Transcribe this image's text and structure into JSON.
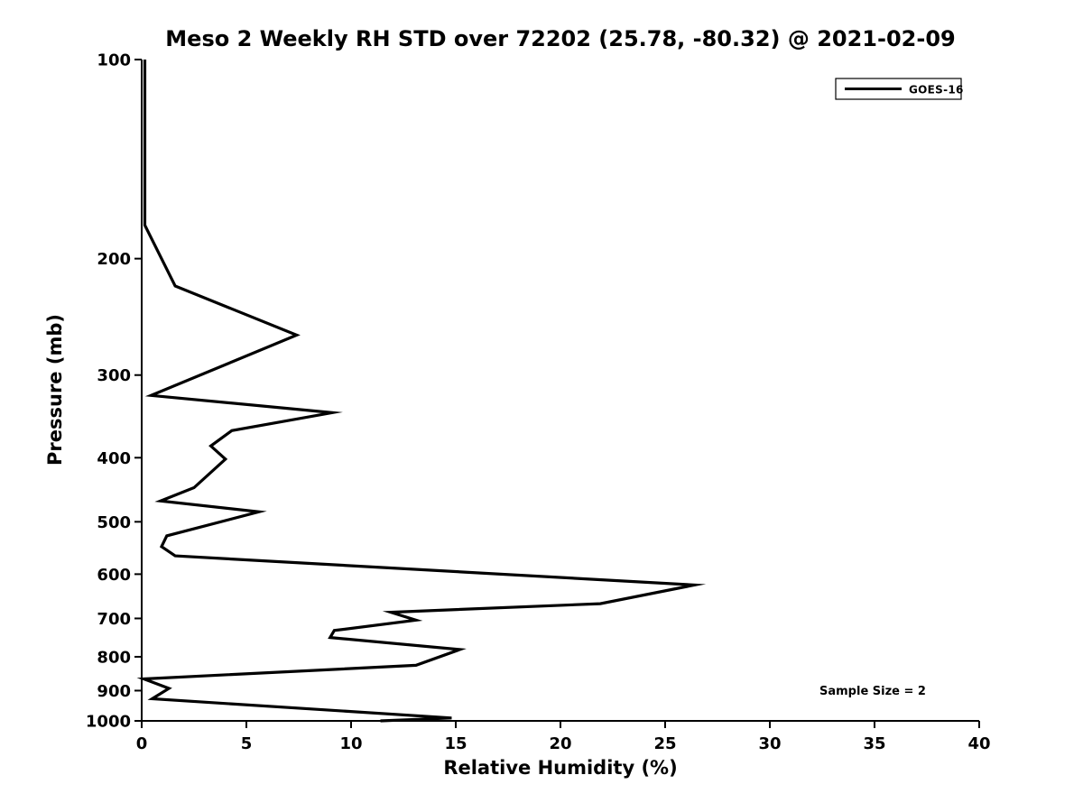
{
  "chart_data": {
    "type": "line",
    "title": "Meso 2 Weekly RH STD over 72202 (25.78, -80.32) @ 2021-02-09",
    "xlabel": "Relative Humidity (%)",
    "ylabel": "Pressure (mb)",
    "xlim": [
      0,
      40
    ],
    "xticks": [
      0,
      5,
      10,
      15,
      20,
      25,
      30,
      35,
      40
    ],
    "yscale": "log",
    "y_inverted": true,
    "ylim": [
      100,
      1000
    ],
    "yticks": [
      100,
      200,
      300,
      400,
      500,
      600,
      700,
      800,
      900,
      1000
    ],
    "grid": false,
    "legend": {
      "position": "upper right",
      "entries": [
        "GOES-16"
      ]
    },
    "annotations": [
      {
        "text": "Sample Size = 2"
      }
    ],
    "series": [
      {
        "name": "GOES-16",
        "color": "#000000",
        "linewidth": 3.2,
        "points_format": "[relative_humidity_std_percent, pressure_mb]",
        "points": [
          [
            0.15,
            100
          ],
          [
            0.15,
            178
          ],
          [
            1.6,
            220
          ],
          [
            7.4,
            261
          ],
          [
            0.45,
            322
          ],
          [
            9.1,
            342
          ],
          [
            4.3,
            364
          ],
          [
            3.3,
            384
          ],
          [
            4.0,
            402
          ],
          [
            2.5,
            444
          ],
          [
            0.9,
            465
          ],
          [
            5.6,
            483
          ],
          [
            1.2,
            525
          ],
          [
            0.95,
            545
          ],
          [
            1.6,
            563
          ],
          [
            26.4,
            623
          ],
          [
            21.9,
            665
          ],
          [
            11.9,
            685
          ],
          [
            13.1,
            704
          ],
          [
            9.2,
            730
          ],
          [
            9.0,
            748
          ],
          [
            15.2,
            780
          ],
          [
            13.1,
            824
          ],
          [
            0.1,
            864
          ],
          [
            1.3,
            893
          ],
          [
            0.5,
            926
          ],
          [
            14.8,
            990
          ],
          [
            11.4,
            1000
          ]
        ]
      }
    ]
  },
  "colors": {
    "background": "#ffffff",
    "foreground": "#000000"
  }
}
